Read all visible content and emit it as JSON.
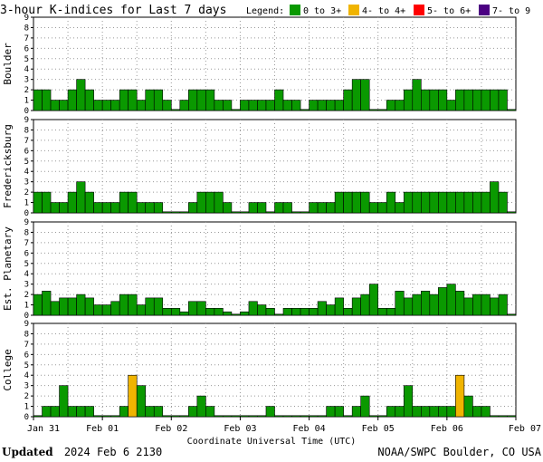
{
  "header": {
    "title": "3-hour K-indices for Last 7 days",
    "legend_label": "Legend:"
  },
  "legend": [
    {
      "label": "0 to 3+",
      "color": "#0a9900"
    },
    {
      "label": "4- to 4+",
      "color": "#f0b400"
    },
    {
      "label": "5- to 6+",
      "color": "#ff0000"
    },
    {
      "label": "7- to 9",
      "color": "#4b0082"
    }
  ],
  "footer": {
    "updated_label": "Updated",
    "updated_value": "2024 Feb  6 2130",
    "source": "NOAA/SWPC Boulder, CO USA"
  },
  "chart_data": {
    "type": "bar",
    "xlabel": "Coordinate Universal Time (UTC)",
    "x_ticks": [
      "Jan 31",
      "Feb 01",
      "Feb 02",
      "Feb 03",
      "Feb 04",
      "Feb 05",
      "Feb 06",
      "Feb 07"
    ],
    "ylim": [
      0,
      9
    ],
    "y_ticks": [
      0,
      1,
      2,
      3,
      4,
      5,
      6,
      7,
      8,
      9
    ],
    "grid": true,
    "bins": 56,
    "bin_hours": 3,
    "series": [
      {
        "name": "Boulder",
        "values": [
          2,
          2,
          1,
          1,
          2,
          3,
          2,
          1,
          1,
          1,
          2,
          2,
          1,
          2,
          2,
          1,
          0,
          1,
          2,
          2,
          2,
          1,
          1,
          0,
          1,
          1,
          1,
          1,
          2,
          1,
          1,
          0,
          1,
          1,
          1,
          1,
          2,
          3,
          3,
          0,
          0,
          1,
          1,
          2,
          3,
          2,
          2,
          2,
          1,
          2,
          2,
          2,
          2,
          2,
          2,
          0
        ]
      },
      {
        "name": "Fredericksburg",
        "values": [
          2,
          2,
          1,
          1,
          2,
          3,
          2,
          1,
          1,
          1,
          2,
          2,
          1,
          1,
          1,
          0,
          0,
          0,
          1,
          2,
          2,
          2,
          1,
          0,
          0,
          1,
          1,
          0,
          1,
          1,
          0,
          0,
          1,
          1,
          1,
          2,
          2,
          2,
          2,
          1,
          1,
          2,
          1,
          2,
          2,
          2,
          2,
          2,
          2,
          2,
          2,
          2,
          2,
          3,
          2,
          0
        ]
      },
      {
        "name": "Est. Planetary",
        "values": [
          2,
          2.33,
          1.33,
          1.67,
          1.67,
          2,
          1.67,
          1,
          1,
          1.33,
          2,
          2,
          1,
          1.67,
          1.67,
          0.67,
          0.67,
          0.33,
          1.33,
          1.33,
          0.67,
          0.67,
          0.33,
          0,
          0.33,
          1.33,
          1,
          0.67,
          0,
          0.67,
          0.67,
          0.67,
          0.67,
          1.33,
          1,
          1.67,
          0.67,
          1.67,
          2,
          3,
          0.67,
          0.67,
          2.33,
          1.67,
          2,
          2.33,
          2,
          2.67,
          3,
          2.33,
          1.67,
          2,
          2,
          1.67,
          2,
          0
        ]
      },
      {
        "name": "College",
        "values": [
          0,
          1,
          1,
          3,
          1,
          1,
          1,
          0,
          0,
          0,
          1,
          4,
          3,
          1,
          1,
          0,
          0,
          0,
          1,
          2,
          1,
          0,
          0,
          0,
          0,
          0,
          0,
          1,
          0,
          0,
          0,
          0,
          0,
          0,
          1,
          1,
          0,
          1,
          2,
          0,
          0,
          1,
          1,
          3,
          1,
          1,
          1,
          1,
          1,
          4,
          2,
          1,
          1,
          0,
          0,
          0
        ]
      }
    ]
  }
}
